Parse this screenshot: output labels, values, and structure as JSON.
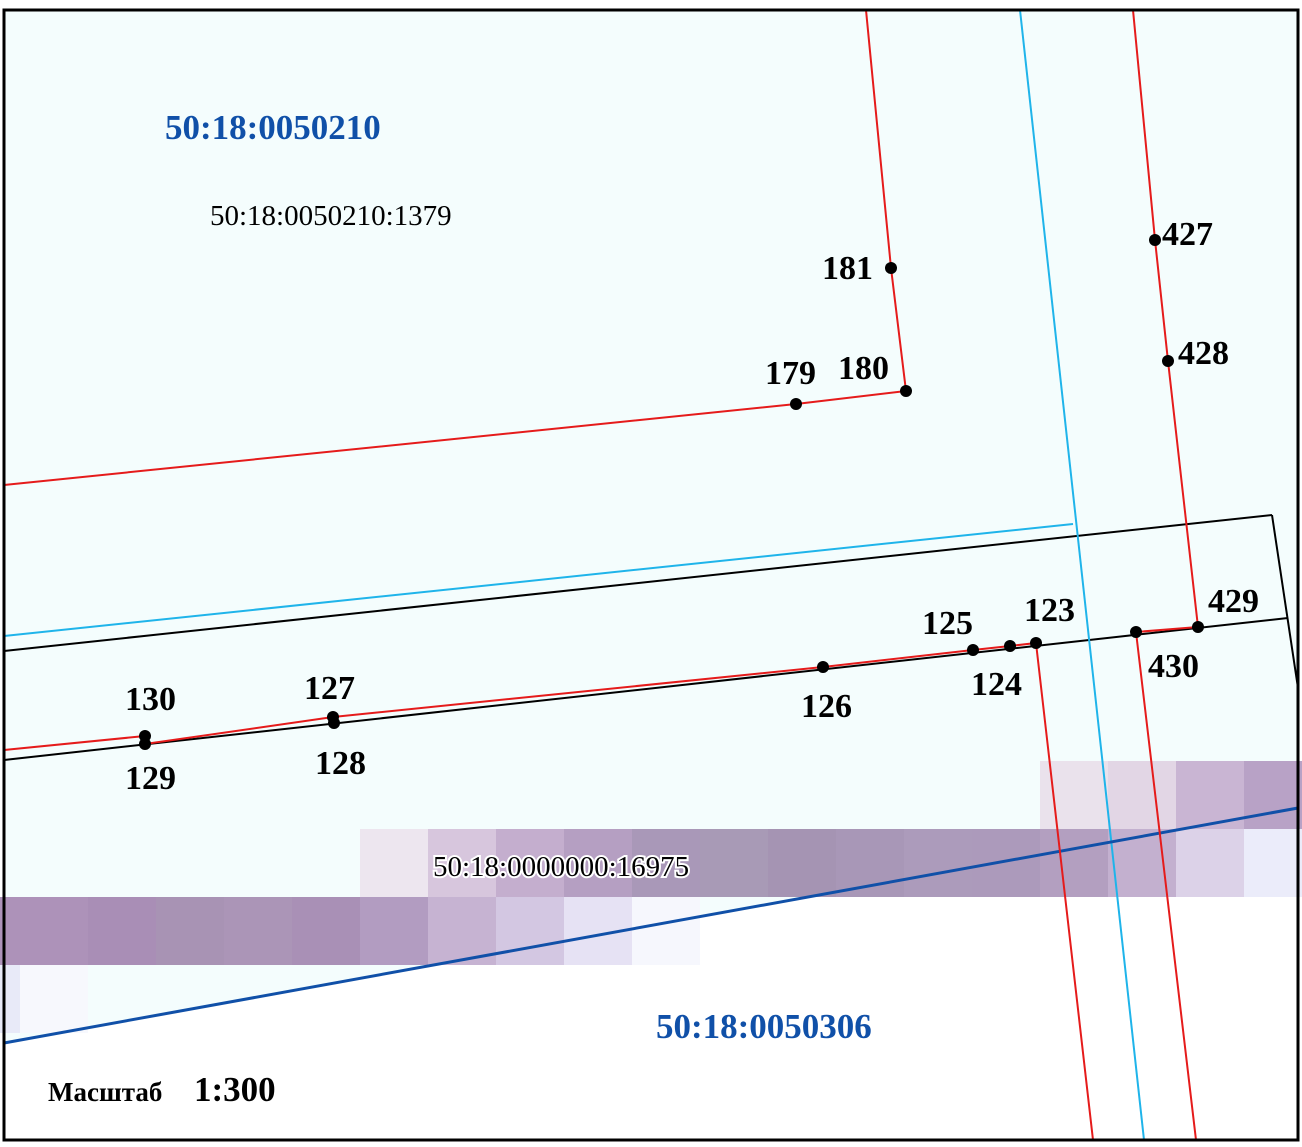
{
  "map": {
    "quarters": [
      {
        "id": "top",
        "number": "50:18:0050210"
      },
      {
        "id": "bottom",
        "number": "50:18:0050306"
      }
    ],
    "parcels": [
      {
        "id": "main",
        "number": "50:18:0050210:1379"
      },
      {
        "id": "road",
        "number": "50:18:0000000:16975"
      }
    ],
    "points": [
      {
        "id": "p181",
        "label": "181"
      },
      {
        "id": "p179",
        "label": "179"
      },
      {
        "id": "p180",
        "label": "180"
      },
      {
        "id": "p427",
        "label": "427"
      },
      {
        "id": "p428",
        "label": "428"
      },
      {
        "id": "p429",
        "label": "429"
      },
      {
        "id": "p430",
        "label": "430"
      },
      {
        "id": "p123",
        "label": "123"
      },
      {
        "id": "p124",
        "label": "124"
      },
      {
        "id": "p125",
        "label": "125"
      },
      {
        "id": "p126",
        "label": "126"
      },
      {
        "id": "p127",
        "label": "127"
      },
      {
        "id": "p128",
        "label": "128"
      },
      {
        "id": "p129",
        "label": "129"
      },
      {
        "id": "p130",
        "label": "130"
      }
    ],
    "scale": {
      "word": "Масштаб",
      "value": "1:300"
    },
    "colors": {
      "boundary": "#e51b1b",
      "quarter_boundary": "#1050a8",
      "cyan_line": "#1fb4ea",
      "parcel_line": "#000000",
      "quarter_label": "#1050a8",
      "background": "#f4fdfd"
    }
  }
}
